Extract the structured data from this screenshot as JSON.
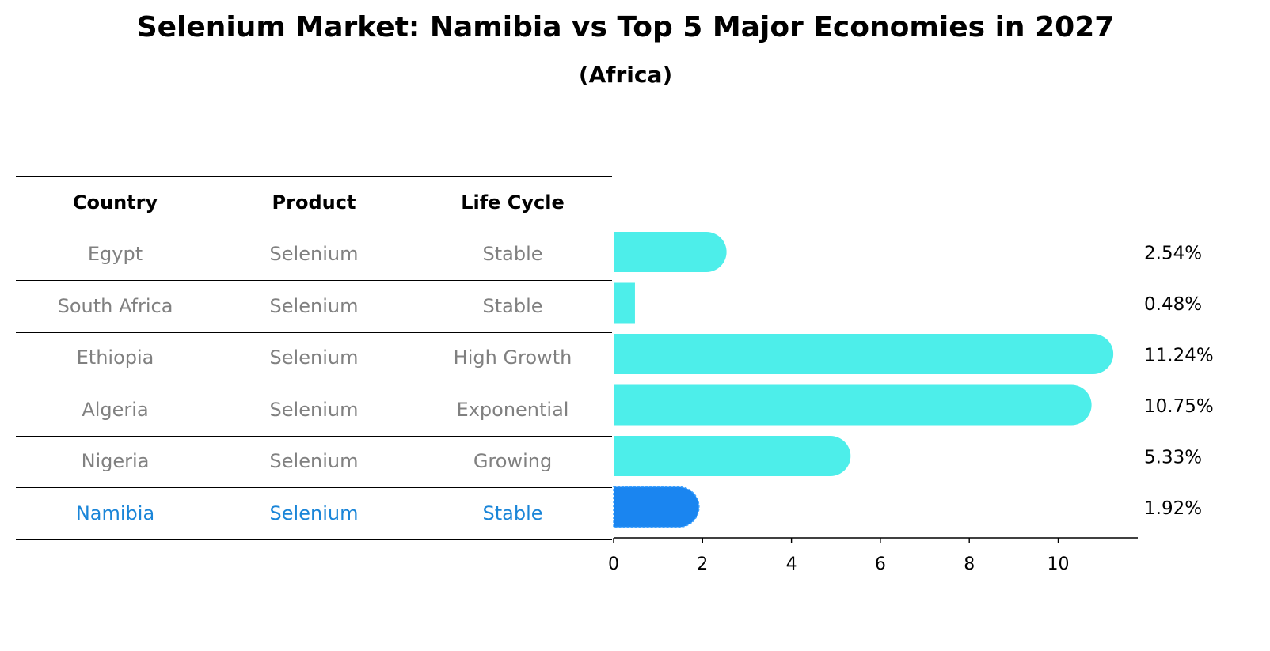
{
  "title": "Selenium Market: Namibia vs Top 5 Major Economies in 2027",
  "subtitle": "(Africa)",
  "table": {
    "headers": [
      "Country",
      "Product",
      "Life Cycle"
    ],
    "rows": [
      {
        "country": "Egypt",
        "product": "Selenium",
        "life_cycle": "Stable",
        "highlight": false
      },
      {
        "country": "South Africa",
        "product": "Selenium",
        "life_cycle": "Stable",
        "highlight": false
      },
      {
        "country": "Ethiopia",
        "product": "Selenium",
        "life_cycle": "High Growth",
        "highlight": false
      },
      {
        "country": "Algeria",
        "product": "Selenium",
        "life_cycle": "Exponential",
        "highlight": false
      },
      {
        "country": "Nigeria",
        "product": "Selenium",
        "life_cycle": "Growing",
        "highlight": false
      },
      {
        "country": "Namibia",
        "product": "Selenium",
        "life_cycle": "Stable",
        "highlight": true
      }
    ]
  },
  "chart_data": {
    "type": "bar",
    "orientation": "horizontal",
    "categories": [
      "Egypt",
      "South Africa",
      "Ethiopia",
      "Algeria",
      "Nigeria",
      "Namibia"
    ],
    "values": [
      2.54,
      0.48,
      11.24,
      10.75,
      5.33,
      1.92
    ],
    "value_labels": [
      "2.54%",
      "0.48%",
      "11.24%",
      "10.75%",
      "5.33%",
      "1.92%"
    ],
    "xlim": [
      0,
      11.8
    ],
    "xticks": [
      0,
      2,
      4,
      6,
      8,
      10
    ],
    "grid": false,
    "colors": {
      "default": "#4deeea",
      "highlight": "#1a85f0",
      "highlight_text": "#1a85d8",
      "muted_text": "#808080"
    }
  }
}
